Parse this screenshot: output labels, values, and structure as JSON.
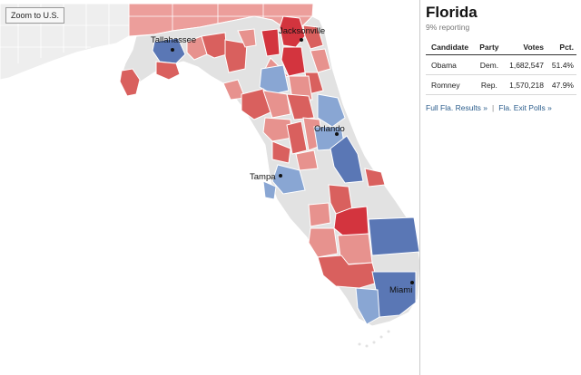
{
  "map": {
    "zoom_label": "Zoom to U.S.",
    "cities": [
      {
        "name": "Tallahassee"
      },
      {
        "name": "Jacksonville"
      },
      {
        "name": "Orlando"
      },
      {
        "name": "Tampa"
      },
      {
        "name": "Miami"
      }
    ],
    "colors": {
      "dem_strong": "#5a77b5",
      "dem_lean": "#89a6d3",
      "rep_strong": "#d3343e",
      "rep_mid": "#d9605e",
      "rep_lean": "#e7928e",
      "neighbor_rep": "#ec9e9b",
      "no_results": "#e2e2e2",
      "neighbor_state": "#eeeeee"
    }
  },
  "panel": {
    "state": "Florida",
    "reporting": "9% reporting",
    "headers": [
      "Candidate",
      "Party",
      "Votes",
      "Pct."
    ],
    "rows": [
      [
        "Obama",
        "Dem.",
        "1,682,547",
        "51.4%"
      ],
      [
        "Romney",
        "Rep.",
        "1,570,218",
        "47.9%"
      ]
    ],
    "links": {
      "results": "Full Fla. Results »",
      "separator": "|",
      "exit_polls": "Fla. Exit Polls »"
    }
  }
}
